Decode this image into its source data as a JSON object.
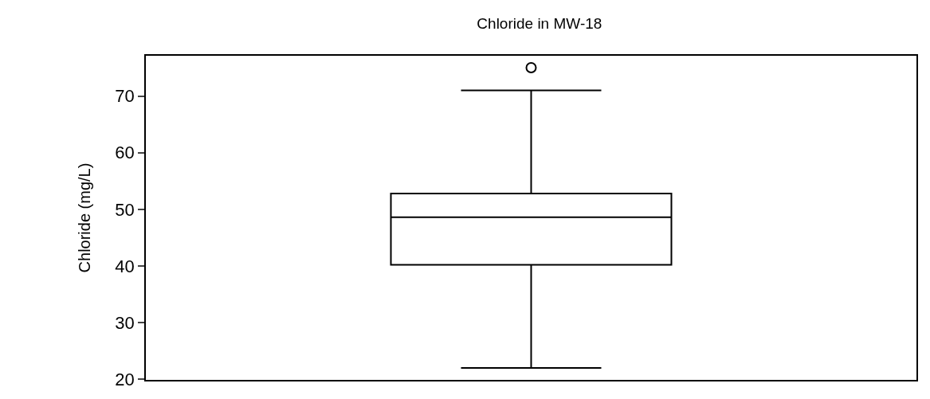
{
  "chart_data": {
    "type": "box",
    "title": "Chloride in MW-18",
    "ylabel": "Chloride (mg/L)",
    "categories": [
      null
    ],
    "boxes": [
      {
        "low": 22,
        "q1": 40.2,
        "median": 48.6,
        "q3": 52.8,
        "high": 71,
        "outliers": [
          75
        ]
      }
    ],
    "ylim": [
      19.88,
      77.12
    ],
    "yticks": [
      20,
      30,
      40,
      50,
      60,
      70
    ],
    "tick_labels": "y",
    "color": "#000000"
  }
}
